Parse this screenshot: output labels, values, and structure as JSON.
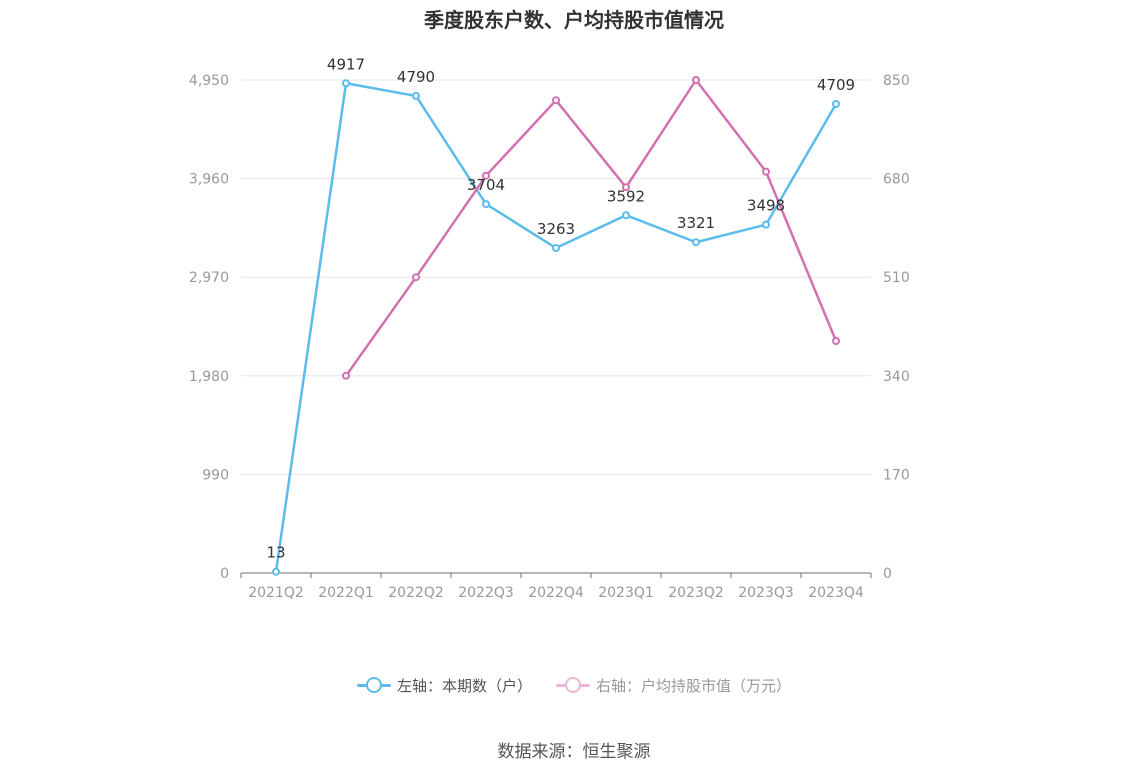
{
  "title": "季度股东户数、户均持股市值情况",
  "source": "数据来源：恒生聚源",
  "colors": {
    "left_series": "#5bbcec",
    "right_series": "#d46fb0",
    "grid": "#e3e6ef",
    "axis_text": "#999999",
    "label_text": "#333333"
  },
  "chart_data": {
    "type": "line",
    "categories": [
      "2021Q2",
      "2022Q1",
      "2022Q2",
      "2022Q3",
      "2022Q4",
      "2023Q1",
      "2023Q2",
      "2023Q3",
      "2023Q4"
    ],
    "y_left": {
      "ylim": [
        0,
        4950
      ],
      "ticks": [
        "0",
        "990",
        "1,980",
        "2,970",
        "3,960",
        "4,950"
      ],
      "tick_values": [
        0,
        990,
        1980,
        2970,
        3960,
        4950
      ]
    },
    "y_right": {
      "ylim": [
        0,
        850
      ],
      "ticks": [
        "0",
        "170",
        "340",
        "510",
        "680",
        "850"
      ],
      "tick_values": [
        0,
        170,
        340,
        510,
        680,
        850
      ]
    },
    "series": [
      {
        "name": "左轴：本期数（户）",
        "axis": "left",
        "values": [
          13,
          4917,
          4790,
          3704,
          3263,
          3592,
          3321,
          3498,
          4709
        ],
        "labels": [
          "13",
          "4917",
          "4790",
          "3704",
          "3263",
          "3592",
          "3321",
          "3498",
          "4709"
        ]
      },
      {
        "name": "右轴：户均持股市值（万元）",
        "axis": "right",
        "values": [
          null,
          340,
          510,
          685,
          815,
          665,
          850,
          692,
          400
        ]
      }
    ],
    "grid": true,
    "legend_position": "bottom-center"
  }
}
